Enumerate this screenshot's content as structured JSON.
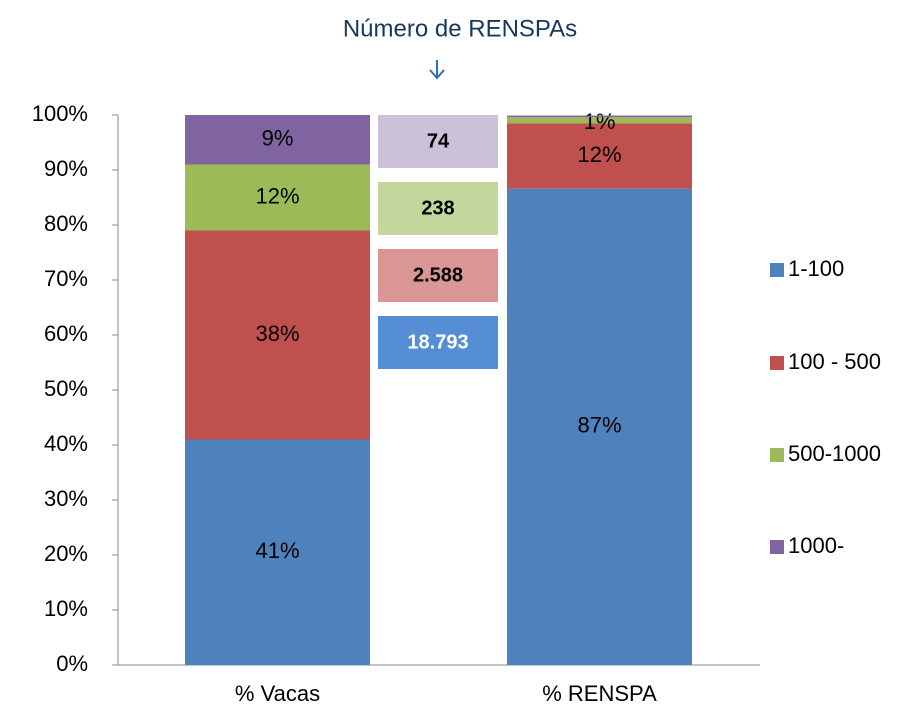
{
  "chart_data": {
    "type": "stacked_bar",
    "annotation": "Número de RENSPAs",
    "boxes": [
      {
        "label": "74",
        "color": "#ccc1da",
        "text_color": "#000000"
      },
      {
        "label": "238",
        "color": "#c3d69b",
        "text_color": "#000000"
      },
      {
        "label": "2.588",
        "color": "#d99694",
        "text_color": "#000000"
      },
      {
        "label": "18.793",
        "color": "#558ed5",
        "text_color": "#ffffff"
      }
    ],
    "categories": [
      "% Vacas",
      "% RENSPA"
    ],
    "series": [
      {
        "name": "1-100",
        "color": "#4f81bd",
        "values": [
          41,
          86.6
        ],
        "value_labels": [
          "41%",
          "87%"
        ]
      },
      {
        "name": "100 - 500",
        "color": "#c0504d",
        "values": [
          38,
          11.9
        ],
        "value_labels": [
          "38%",
          "12%"
        ]
      },
      {
        "name": "500-1000",
        "color": "#9bbb59",
        "values": [
          12,
          1.1
        ],
        "value_labels": [
          "12%",
          "1%"
        ]
      },
      {
        "name": "1000-",
        "color": "#8064a2",
        "values": [
          9,
          0.3
        ],
        "value_labels": [
          "9%",
          null
        ]
      }
    ],
    "ylim": [
      0,
      100
    ],
    "yticks": [
      {
        "value": 0,
        "label": "0%"
      },
      {
        "value": 10,
        "label": "10%"
      },
      {
        "value": 20,
        "label": "20%"
      },
      {
        "value": 30,
        "label": "30%"
      },
      {
        "value": 40,
        "label": "40%"
      },
      {
        "value": 50,
        "label": "50%"
      },
      {
        "value": 60,
        "label": "60%"
      },
      {
        "value": 70,
        "label": "70%"
      },
      {
        "value": 80,
        "label": "80%"
      },
      {
        "value": 90,
        "label": "90%"
      },
      {
        "value": 100,
        "label": "100%"
      }
    ],
    "legend": "right"
  }
}
